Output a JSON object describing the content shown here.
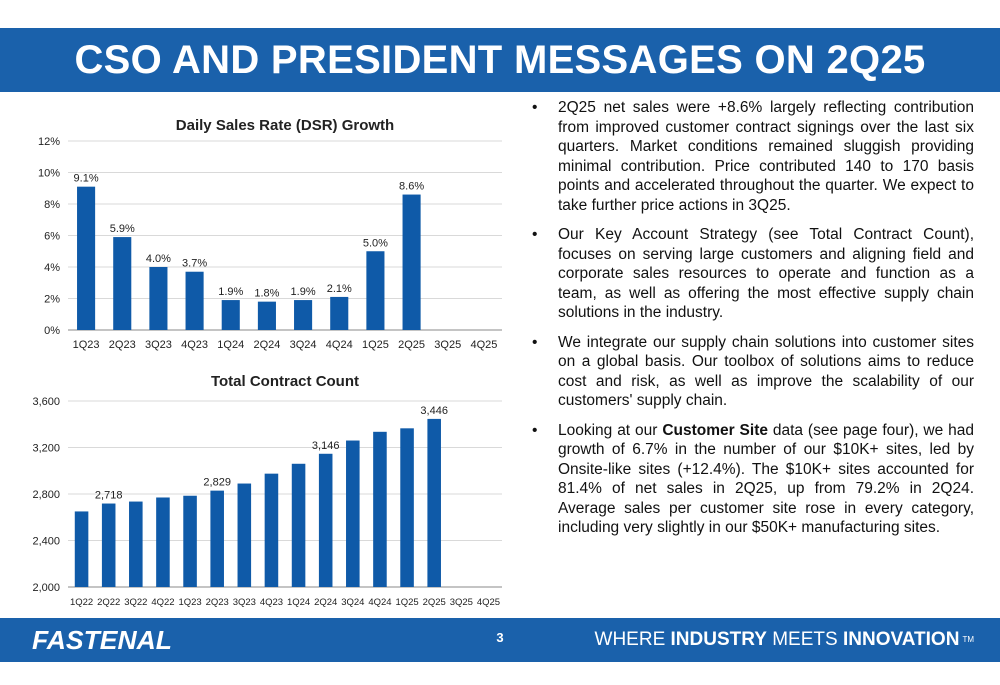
{
  "header": {
    "title": "CSO AND PRESIDENT MESSAGES ON 2Q25"
  },
  "colors": {
    "brand_blue": "#1a61ab",
    "bar_blue": "#0f5aa8",
    "grid": "#d9d9d9"
  },
  "chart_data": [
    {
      "type": "bar",
      "title": "Daily Sales Rate (DSR) Growth",
      "categories": [
        "1Q23",
        "2Q23",
        "3Q23",
        "4Q23",
        "1Q24",
        "2Q24",
        "3Q24",
        "4Q24",
        "1Q25",
        "2Q25",
        "3Q25",
        "4Q25"
      ],
      "values": [
        9.1,
        5.9,
        4.0,
        3.7,
        1.9,
        1.8,
        1.9,
        2.1,
        5.0,
        8.6,
        null,
        null
      ],
      "data_labels": [
        "9.1%",
        "5.9%",
        "4.0%",
        "3.7%",
        "1.9%",
        "1.8%",
        "1.9%",
        "2.1%",
        "5.0%",
        "8.6%",
        "",
        ""
      ],
      "yticks": [
        "0%",
        "2%",
        "4%",
        "6%",
        "8%",
        "10%",
        "12%"
      ],
      "ylim": [
        0,
        12
      ],
      "grid": true,
      "xlabel": "",
      "ylabel": ""
    },
    {
      "type": "bar",
      "title": "Total Contract Count",
      "categories": [
        "1Q22",
        "2Q22",
        "3Q22",
        "4Q22",
        "1Q23",
        "2Q23",
        "3Q23",
        "4Q23",
        "1Q24",
        "2Q24",
        "3Q24",
        "4Q24",
        "1Q25",
        "2Q25",
        "3Q25",
        "4Q25"
      ],
      "values": [
        2650,
        2718,
        2735,
        2770,
        2785,
        2829,
        2890,
        2975,
        3060,
        3146,
        3260,
        3335,
        3365,
        3446,
        null,
        null
      ],
      "data_labels": [
        "",
        "2,718",
        "",
        "",
        "",
        "2,829",
        "",
        "",
        "",
        "3,146",
        "",
        "",
        "",
        "3,446",
        "",
        ""
      ],
      "yticks": [
        "2,000",
        "2,400",
        "2,800",
        "3,200",
        "3,600"
      ],
      "ylim": [
        2000,
        3600
      ],
      "grid": true,
      "xlabel": "",
      "ylabel": ""
    }
  ],
  "bullets": {
    "marker": "•",
    "items": [
      {
        "parts": [
          {
            "text": "2Q25 net sales were +8.6% largely reflecting contribution from improved customer contract signings over the last six quarters. Market conditions remained sluggish providing minimal contribution. Price contributed 140 to 170 basis points and accelerated throughout the quarter. We expect to take further price actions in 3Q25."
          }
        ]
      },
      {
        "parts": [
          {
            "text": "Our Key Account Strategy (see Total Contract Count), focuses on serving large customers and aligning field and corporate sales resources to operate and function as a team, as well as offering the most effective supply chain solutions in the industry."
          }
        ]
      },
      {
        "parts": [
          {
            "text": "We integrate our supply chain solutions into customer sites on a global basis. Our toolbox of solutions aims to reduce cost and risk, as well as improve the scalability of our customers' supply chain."
          }
        ]
      },
      {
        "parts": [
          {
            "text": "Looking at our "
          },
          {
            "text": "Customer Site",
            "bold": true
          },
          {
            "text": " data (see page four), we had growth of 6.7% in the number of our $10K+ sites, led by Onsite-like sites (+12.4%). The $10K+ sites accounted for 81.4% of net sales in 2Q25, up from 79.2% in 2Q24. Average sales per customer site rose in every category, including very slightly in our $50K+ manufacturing sites."
          }
        ]
      }
    ]
  },
  "footer": {
    "logo_text": "FASTENAL",
    "page_number": "3",
    "tagline_parts": [
      {
        "text": "WHERE ",
        "bold": false
      },
      {
        "text": "INDUSTRY",
        "bold": true
      },
      {
        "text": " MEETS ",
        "bold": false
      },
      {
        "text": "INNOVATION",
        "bold": true
      }
    ],
    "tm": "TM"
  }
}
